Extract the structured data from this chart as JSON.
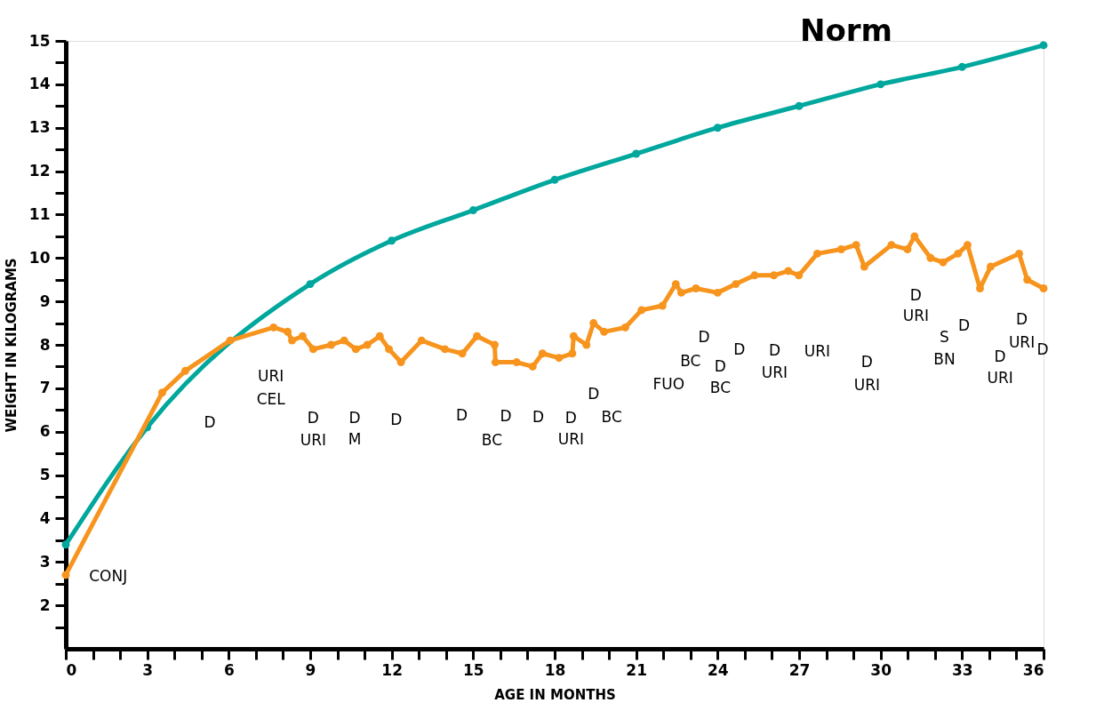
{
  "chart_data": {
    "type": "line",
    "xlabel": "AGE IN MONTHS",
    "ylabel": "WEIGHT IN KILOGRAMS",
    "xlim": [
      0,
      36
    ],
    "ylim": [
      1,
      15
    ],
    "xticks": [
      0,
      {
        "value": 1,
        "label": null
      },
      {
        "value": 2,
        "label": null
      },
      3,
      {
        "value": 4,
        "label": null
      },
      {
        "value": 5,
        "label": null
      },
      6,
      {
        "value": 7,
        "label": null
      },
      {
        "value": 8,
        "label": null
      },
      9,
      {
        "value": 10,
        "label": null
      },
      {
        "value": 11,
        "label": null
      },
      12,
      {
        "value": 13,
        "label": null
      },
      {
        "value": 14,
        "label": null
      },
      15,
      {
        "value": 16,
        "label": null
      },
      {
        "value": 17,
        "label": null
      },
      18,
      {
        "value": 19,
        "label": null
      },
      {
        "value": 20,
        "label": null
      },
      21,
      {
        "value": 22,
        "label": null
      },
      {
        "value": 23,
        "label": null
      },
      24,
      {
        "value": 25,
        "label": null
      },
      {
        "value": 26,
        "label": null
      },
      27,
      {
        "value": 28,
        "label": null
      },
      {
        "value": 29,
        "label": null
      },
      30,
      {
        "value": 31,
        "label": null
      },
      {
        "value": 32,
        "label": null
      },
      33,
      {
        "value": 34,
        "label": null
      },
      {
        "value": 35,
        "label": null
      },
      36
    ],
    "yticks": [
      {
        "value": 1.5,
        "label": null
      },
      2,
      {
        "value": 2.5,
        "label": null
      },
      3,
      {
        "value": 3.5,
        "label": null
      },
      4,
      {
        "value": 4.5,
        "label": null
      },
      5,
      {
        "value": 5.5,
        "label": null
      },
      6,
      {
        "value": 6.5,
        "label": null
      },
      7,
      {
        "value": 7.5,
        "label": null
      },
      8,
      {
        "value": 8.5,
        "label": null
      },
      9,
      {
        "value": 9.5,
        "label": null
      },
      10,
      {
        "value": 10.5,
        "label": null
      },
      11,
      {
        "value": 11.5,
        "label": null
      },
      12,
      {
        "value": 12.5,
        "label": null
      },
      13,
      {
        "value": 13.5,
        "label": null
      },
      14,
      {
        "value": 14.5,
        "label": null
      },
      15
    ],
    "grid": false,
    "marker": "circle",
    "line_style": "solid",
    "series": [
      {
        "name": "Norm",
        "color": "#00a79d",
        "x": [
          0,
          3,
          9,
          12,
          15,
          18,
          21,
          24,
          27,
          30,
          33,
          36
        ],
        "values": [
          3.4,
          6.1,
          9.4,
          10.4,
          11.1,
          11.8,
          12.4,
          13.0,
          13.5,
          14.0,
          14.4,
          14.9
        ]
      },
      {
        "color": "#f7941d",
        "x": [
          0,
          3.55,
          4.4,
          6.05,
          7.65,
          8.17,
          8.33,
          8.72,
          9.11,
          9.77,
          10.25,
          10.68,
          11.1,
          11.56,
          11.9,
          12.34,
          13.1,
          13.96,
          14.6,
          15.14,
          15.79,
          15.82,
          16.6,
          17.19,
          17.55,
          18.16,
          18.65,
          18.7,
          19.17,
          19.43,
          19.82,
          20.6,
          21.2,
          21.97,
          22.46,
          22.66,
          23.2,
          24.0,
          24.67,
          25.36,
          26.07,
          26.6,
          26.99,
          27.67,
          28.55,
          29.1,
          29.4,
          30.4,
          30.99,
          31.25,
          31.84,
          32.3,
          32.85,
          33.2,
          33.66,
          34.05,
          35.1,
          35.4,
          36
        ],
        "values": [
          2.7,
          6.9,
          7.4,
          8.1,
          8.4,
          8.3,
          8.1,
          8.2,
          7.9,
          8.0,
          8.1,
          7.9,
          8.0,
          8.2,
          7.9,
          7.6,
          8.1,
          7.9,
          7.8,
          8.2,
          8.0,
          7.6,
          7.6,
          7.5,
          7.8,
          7.7,
          7.8,
          8.2,
          8.0,
          8.5,
          8.3,
          8.4,
          8.8,
          8.9,
          9.4,
          9.2,
          9.3,
          9.2,
          9.4,
          9.6,
          9.6,
          9.7,
          9.6,
          10.1,
          10.2,
          10.3,
          9.8,
          10.3,
          10.2,
          10.5,
          10.0,
          9.9,
          10.1,
          10.3,
          9.3,
          9.8,
          10.1,
          9.5,
          9.3
        ]
      }
    ],
    "annotations": [
      "CONJ",
      "D",
      "URI",
      "CEL",
      "D",
      "URI",
      "D",
      "M",
      "D",
      "D",
      "BC",
      "D",
      "D",
      "D",
      "URI",
      "D",
      "BC",
      "FUO",
      "BC",
      "D",
      "D",
      "BC",
      "D",
      "D",
      "URI",
      "URI",
      "D",
      "URI",
      "D",
      "URI",
      "S",
      "BN",
      "D",
      "D",
      "URI",
      "D",
      "URI",
      "D"
    ]
  }
}
